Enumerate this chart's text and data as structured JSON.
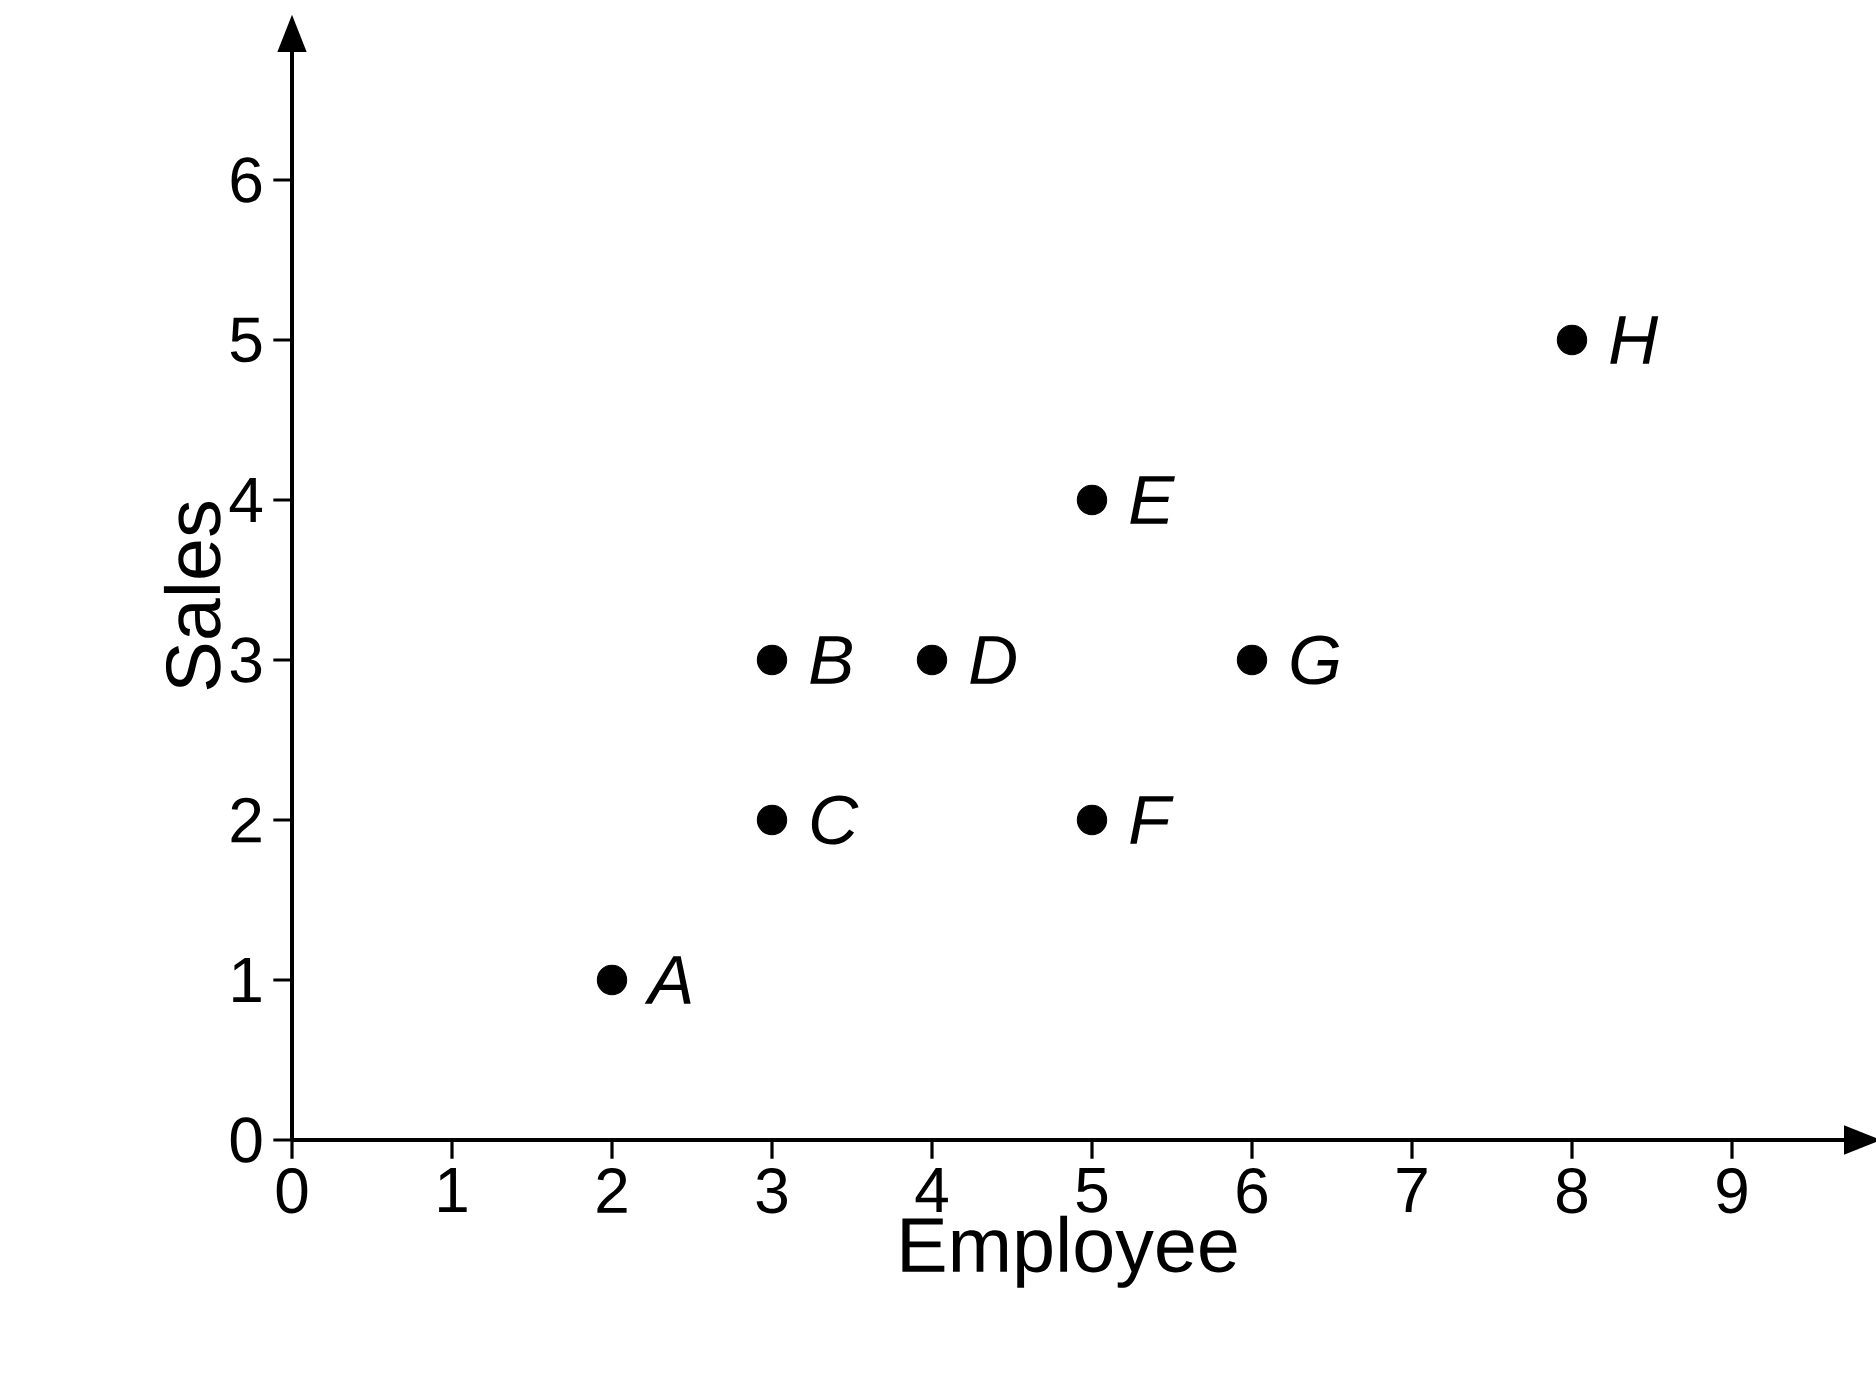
{
  "chart_data": {
    "type": "scatter",
    "xlabel": "Employee",
    "ylabel": "Sales",
    "x": [
      2,
      3,
      3,
      4,
      5,
      5,
      6,
      8
    ],
    "values": [
      1,
      3,
      2,
      3,
      4,
      2,
      3,
      5
    ],
    "color": "#000000",
    "marker": "circle",
    "xlim": [
      0,
      9.7
    ],
    "ylim": [
      0,
      6.8
    ],
    "xticks": [
      0,
      1,
      2,
      3,
      4,
      5,
      6,
      7,
      8,
      9
    ],
    "yticks": [
      0,
      1,
      2,
      3,
      4,
      5,
      6
    ],
    "annotations": [
      {
        "text": "A",
        "x": 2,
        "y": 1
      },
      {
        "text": "B",
        "x": 3,
        "y": 3
      },
      {
        "text": "C",
        "x": 3,
        "y": 2
      },
      {
        "text": "D",
        "x": 4,
        "y": 3
      },
      {
        "text": "E",
        "x": 5,
        "y": 4
      },
      {
        "text": "F",
        "x": 5,
        "y": 2
      },
      {
        "text": "G",
        "x": 6,
        "y": 3
      },
      {
        "text": "H",
        "x": 8,
        "y": 5
      }
    ]
  }
}
